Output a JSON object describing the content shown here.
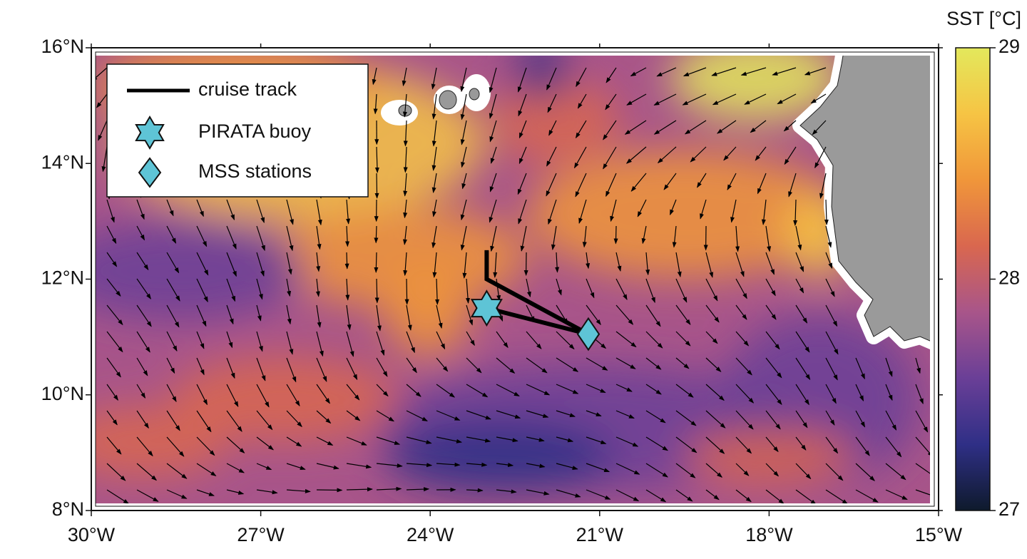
{
  "map": {
    "xlim": [
      -30,
      -15
    ],
    "xticks": [
      {
        "value": -30,
        "label": "30°W"
      },
      {
        "value": -27,
        "label": "27°W"
      },
      {
        "value": -24,
        "label": "24°W"
      },
      {
        "value": -21,
        "label": "21°W"
      },
      {
        "value": -18,
        "label": "18°W"
      },
      {
        "value": -15,
        "label": "15°W"
      }
    ],
    "ylim": [
      8,
      16
    ],
    "yticks": [
      {
        "value": 8,
        "label": "8°N"
      },
      {
        "value": 10,
        "label": "10°N"
      },
      {
        "value": 12,
        "label": "12°N"
      },
      {
        "value": 14,
        "label": "14°N"
      },
      {
        "value": 16,
        "label": "16°N"
      }
    ],
    "colorbar": {
      "label": "SST [°C]",
      "lim": [
        27,
        29
      ],
      "ticks": [
        27,
        28,
        29
      ],
      "colormap": [
        "#0e1a2c",
        "#2f2f86",
        "#6a3f97",
        "#a8558a",
        "#d9674f",
        "#f0963a",
        "#f6c444",
        "#e3e85c"
      ]
    },
    "legend": [
      {
        "name": "cruise track",
        "color": "#000000"
      },
      {
        "name": "PIRATA buoy",
        "color": "#5ec4d6"
      },
      {
        "name": "MSS stations",
        "color": "#5ec4d6"
      }
    ],
    "track": {
      "lon": [
        -23,
        -23,
        -21.2,
        -23
      ],
      "lat": [
        12.5,
        12,
        11.05,
        11.5
      ]
    },
    "buoy": {
      "lon": -23,
      "lat": 11.5
    },
    "stations": {
      "lon": -21.2,
      "lat": 11.05
    }
  }
}
